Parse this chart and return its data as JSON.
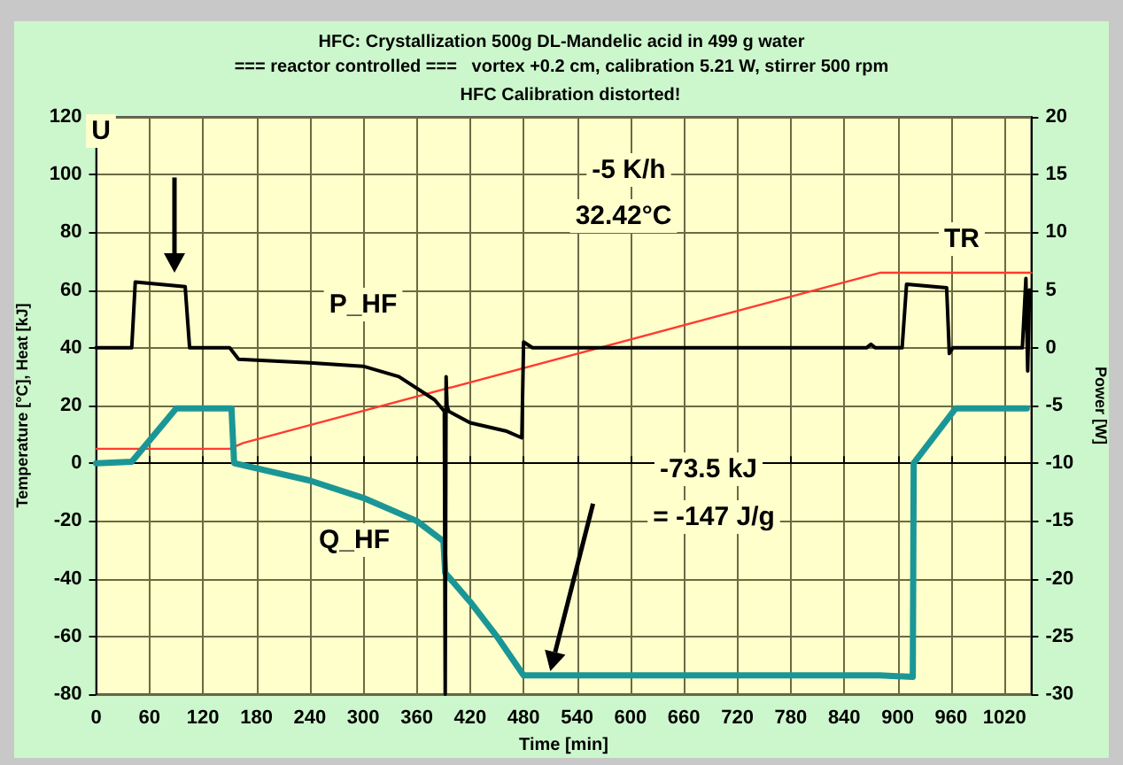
{
  "chart_data": {
    "type": "line",
    "title": "HFC: Crystallization 500g DL-Mandelic acid in 499 g water",
    "subtitle": "=== reactor controlled ===   vortex +0.2 cm, calibration 5.21 W, stirrer 500 rpm",
    "xlabel": "Time [min]",
    "ylabel": "Temperature [°C], Heat [kJ]",
    "y2label": "Power [W]",
    "xlim": [
      0,
      1050
    ],
    "xticks": [
      0,
      60,
      120,
      180,
      240,
      300,
      360,
      420,
      480,
      540,
      600,
      660,
      720,
      780,
      840,
      900,
      960,
      1020
    ],
    "ylim": [
      -80,
      120
    ],
    "yticks": [
      -80,
      -60,
      -40,
      -20,
      0,
      20,
      40,
      60,
      80,
      100,
      120
    ],
    "y2lim": [
      -30,
      20
    ],
    "y2ticks": [
      -30,
      -25,
      -20,
      -15,
      -10,
      -5,
      0,
      5,
      10,
      15,
      20
    ],
    "grid": true,
    "marker": "none",
    "line_style": "solid",
    "series": [
      {
        "color": "#ff3b2f",
        "x": [
          0,
          150,
          165,
          880,
          1050
        ],
        "values": [
          5,
          5,
          7,
          66,
          66
        ]
      },
      {
        "color": "#1b9696",
        "x": [
          0,
          40,
          90,
          152,
          155,
          240,
          300,
          360,
          390,
          392,
          420,
          450,
          480,
          880,
          917,
          918,
          965,
          1045
        ],
        "values": [
          0,
          0.5,
          19,
          19,
          0,
          -6,
          -12,
          -20,
          -27,
          -38,
          -48,
          -60,
          -73.5,
          -73.5,
          -74,
          0,
          19,
          19
        ]
      },
      {
        "color": "#000000",
        "axis": "y2",
        "x": [
          0,
          40,
          44,
          100,
          105,
          150,
          160,
          240,
          300,
          340,
          380,
          391,
          392,
          393,
          394,
          396,
          420,
          460,
          478,
          480,
          490,
          865,
          870,
          875,
          905,
          910,
          955,
          958,
          962,
          1040,
          1044,
          1046,
          1048
        ],
        "values": [
          0,
          0,
          5.7,
          5.3,
          0,
          0,
          -1,
          -1.3,
          -1.6,
          -2.5,
          -4.5,
          -5.5,
          -30,
          -2.5,
          -5,
          -5.5,
          -6.5,
          -7.2,
          -7.8,
          0.5,
          0,
          0,
          0.3,
          0,
          0,
          5.5,
          5.2,
          -0.5,
          0,
          0,
          6,
          -2,
          5
        ]
      }
    ],
    "annotations": [
      "HFC Calibration distorted!",
      "U",
      "-5 K/h",
      "32.42°C",
      "P_HF",
      "TR",
      "Q_HF",
      "-73.5 kJ",
      "= -147 J/g"
    ]
  }
}
